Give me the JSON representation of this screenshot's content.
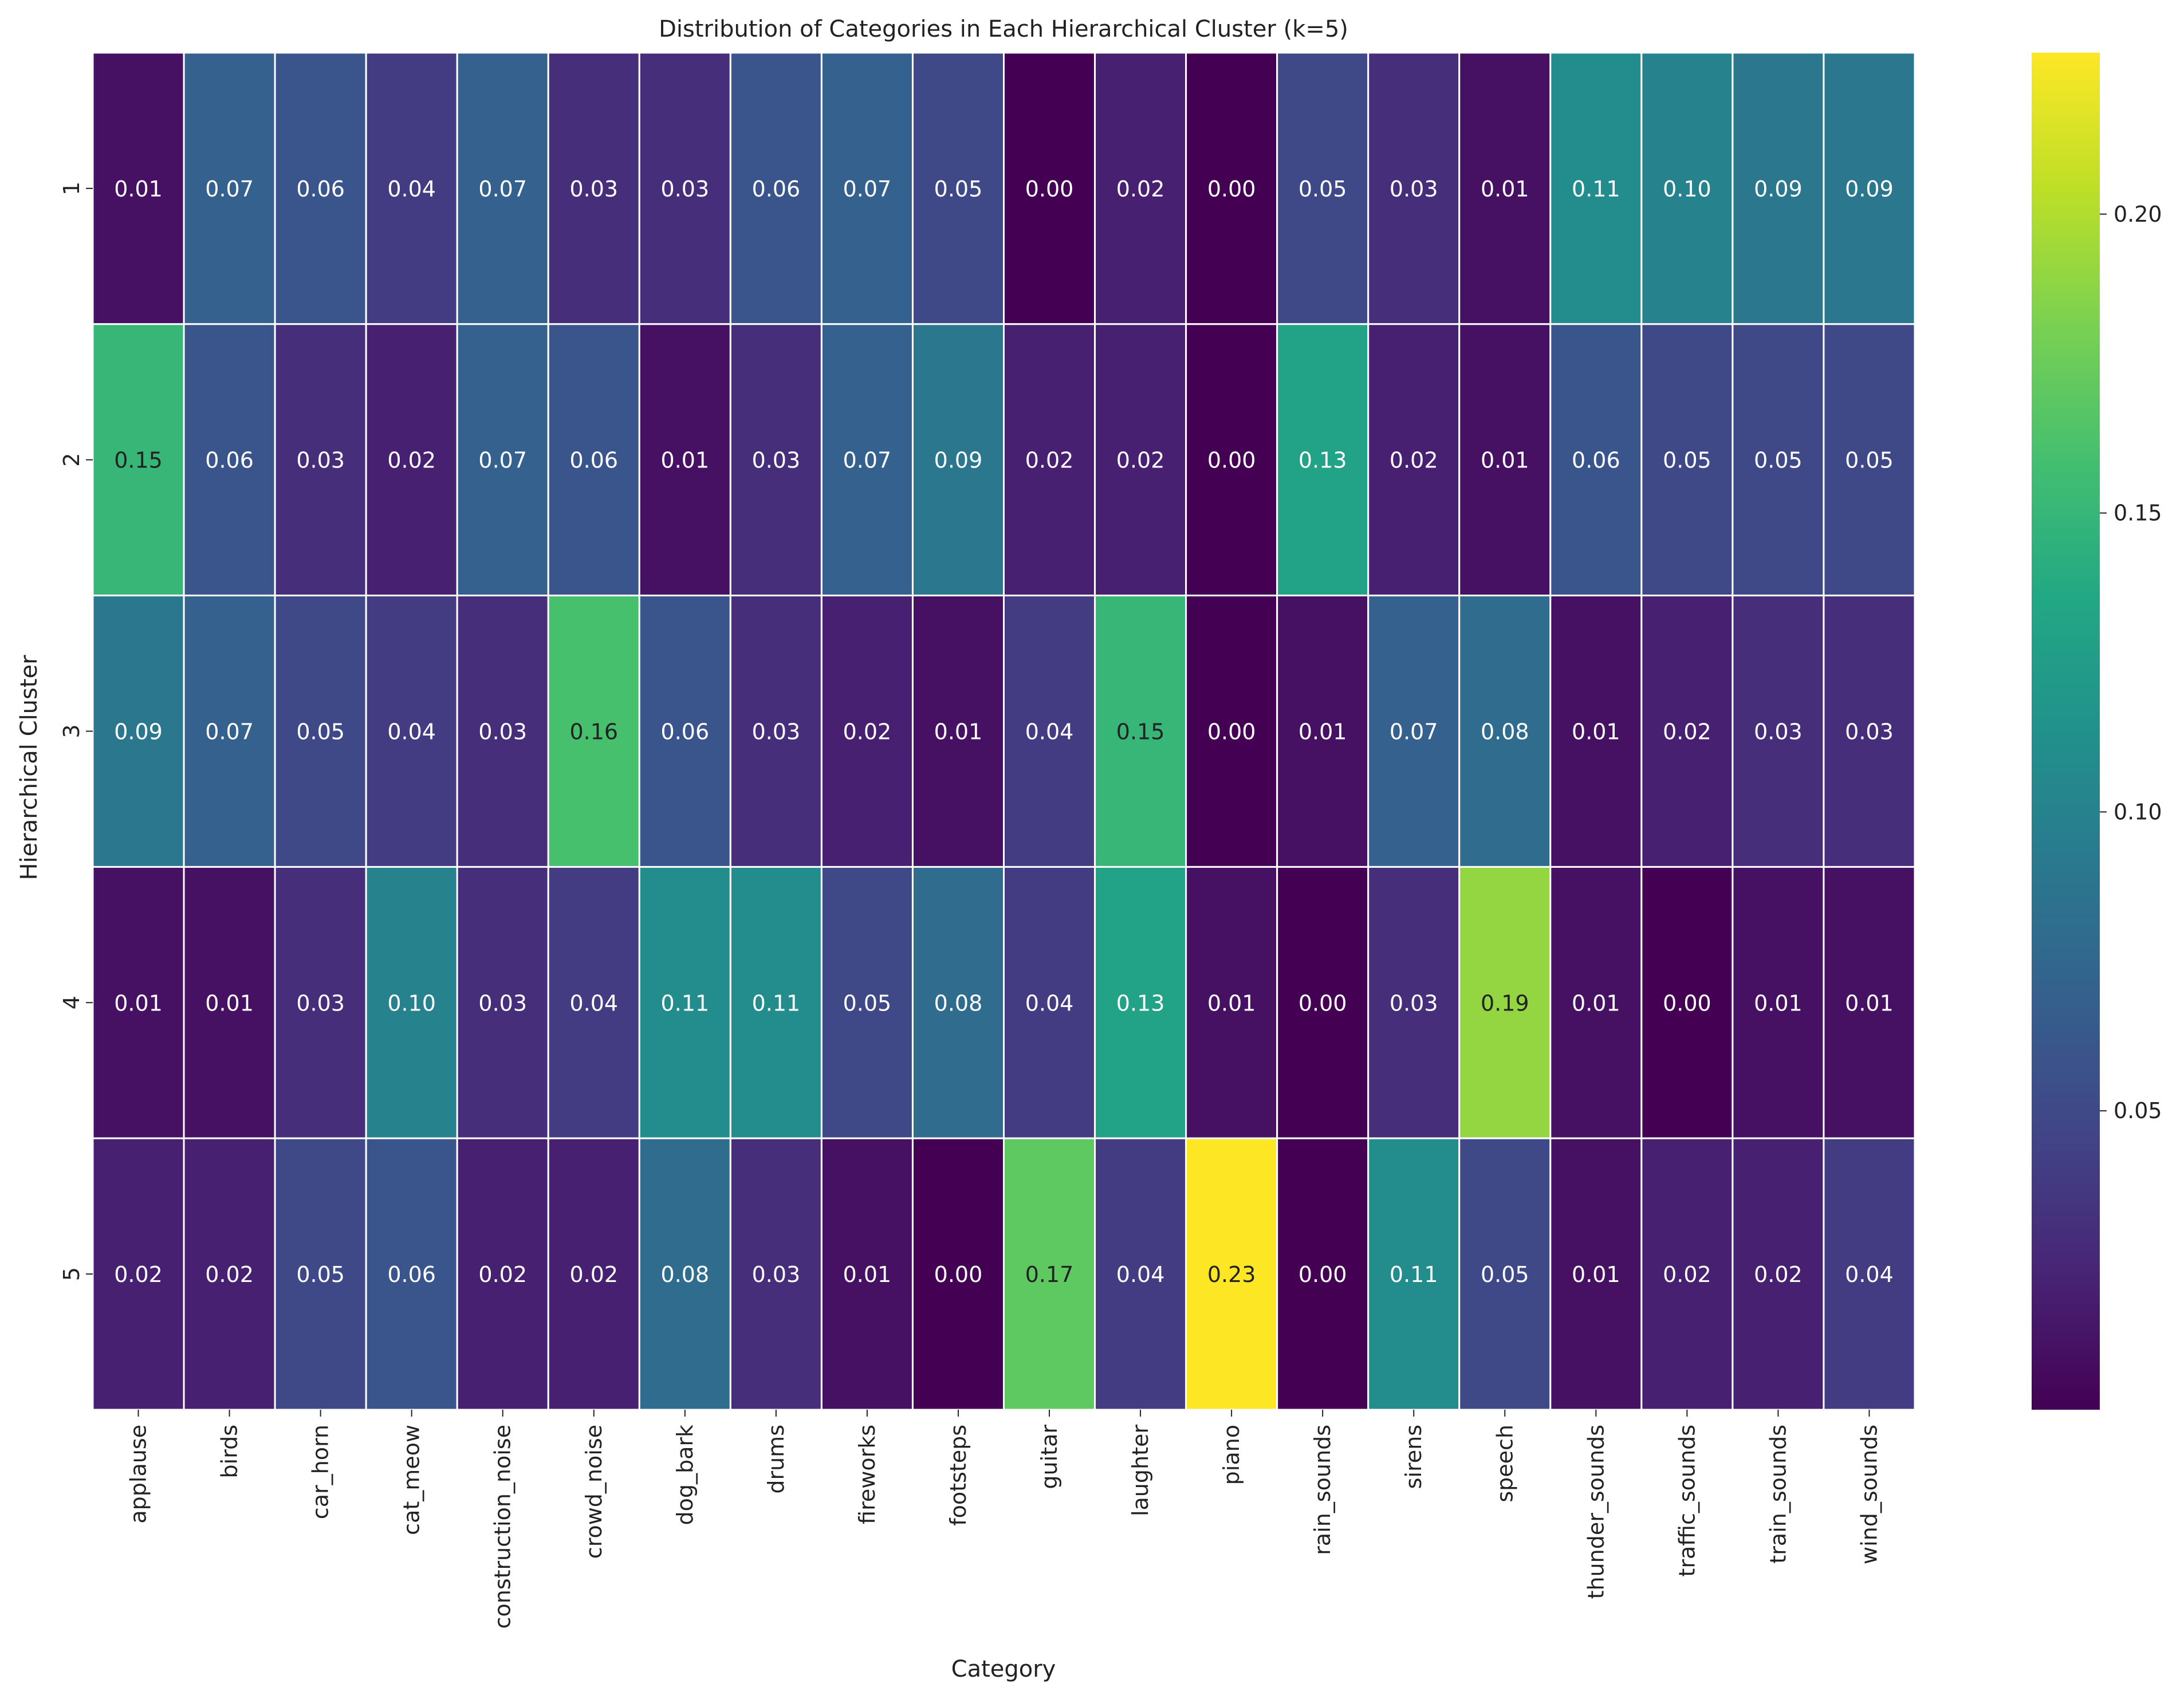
{
  "chart_data": {
    "type": "heatmap",
    "title": "Distribution of Categories in Each Hierarchical Cluster (k=5)",
    "xlabel": "Category",
    "ylabel": "Hierarchical Cluster",
    "colormap": "viridis",
    "categories": [
      "applause",
      "birds",
      "car_horn",
      "cat_meow",
      "construction_noise",
      "crowd_noise",
      "dog_bark",
      "drums",
      "fireworks",
      "footsteps",
      "guitar",
      "laughter",
      "piano",
      "rain_sounds",
      "sirens",
      "speech",
      "thunder_sounds",
      "traffic_sounds",
      "train_sounds",
      "wind_sounds"
    ],
    "rows": [
      "1",
      "2",
      "3",
      "4",
      "5"
    ],
    "values": [
      [
        0.01,
        0.07,
        0.06,
        0.04,
        0.07,
        0.03,
        0.03,
        0.06,
        0.07,
        0.05,
        0.0,
        0.02,
        0.0,
        0.05,
        0.03,
        0.01,
        0.11,
        0.1,
        0.09,
        0.09
      ],
      [
        0.15,
        0.06,
        0.03,
        0.02,
        0.07,
        0.06,
        0.01,
        0.03,
        0.07,
        0.09,
        0.02,
        0.02,
        0.0,
        0.13,
        0.02,
        0.01,
        0.06,
        0.05,
        0.05,
        0.05
      ],
      [
        0.09,
        0.07,
        0.05,
        0.04,
        0.03,
        0.16,
        0.06,
        0.03,
        0.02,
        0.01,
        0.04,
        0.15,
        0.0,
        0.01,
        0.07,
        0.08,
        0.01,
        0.02,
        0.03,
        0.03
      ],
      [
        0.01,
        0.01,
        0.03,
        0.1,
        0.03,
        0.04,
        0.11,
        0.11,
        0.05,
        0.08,
        0.04,
        0.13,
        0.01,
        0.0,
        0.03,
        0.19,
        0.01,
        0.0,
        0.01,
        0.01
      ],
      [
        0.02,
        0.02,
        0.05,
        0.06,
        0.02,
        0.02,
        0.08,
        0.03,
        0.01,
        0.0,
        0.17,
        0.04,
        0.23,
        0.0,
        0.11,
        0.05,
        0.01,
        0.02,
        0.02,
        0.04
      ]
    ],
    "color_range": [
      0.0,
      0.227
    ],
    "colorbar_ticks": [
      "0.05",
      "0.10",
      "0.15",
      "0.20"
    ],
    "colorbar_tick_values": [
      0.05,
      0.1,
      0.15,
      0.2
    ],
    "grid_line_color": "#ffffff"
  }
}
